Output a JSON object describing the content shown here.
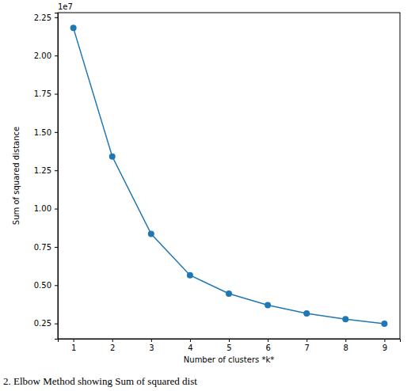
{
  "chart_data": {
    "type": "line",
    "x_label": "Number of clusters *k*",
    "y_label": "Sum of squared distance",
    "y_multiplier_label": "1e7",
    "caption": "2. Elbow Method showing Sum of squared dist",
    "x": [
      1,
      2,
      3,
      4,
      5,
      6,
      7,
      8,
      9
    ],
    "values": [
      2.18,
      1.34,
      0.835,
      0.565,
      0.445,
      0.37,
      0.315,
      0.278,
      0.248
    ],
    "color": "#1f77b4",
    "marker": "circle",
    "xlim": [
      0.6,
      9.4
    ],
    "ylim": [
      0.15,
      2.28
    ],
    "xticks": [
      1,
      2,
      3,
      4,
      5,
      6,
      7,
      8,
      9
    ],
    "yticks": [
      {
        "value": 0.25,
        "label": "0.25"
      },
      {
        "value": 0.5,
        "label": "0.50"
      },
      {
        "value": 0.75,
        "label": "0.75"
      },
      {
        "value": 1.0,
        "label": "1.00"
      },
      {
        "value": 1.25,
        "label": "1.25"
      },
      {
        "value": 1.5,
        "label": "1.50"
      },
      {
        "value": 1.75,
        "label": "1.75"
      },
      {
        "value": 2.0,
        "label": "2.00"
      },
      {
        "value": 2.25,
        "label": "2.25"
      }
    ],
    "grid": false
  }
}
